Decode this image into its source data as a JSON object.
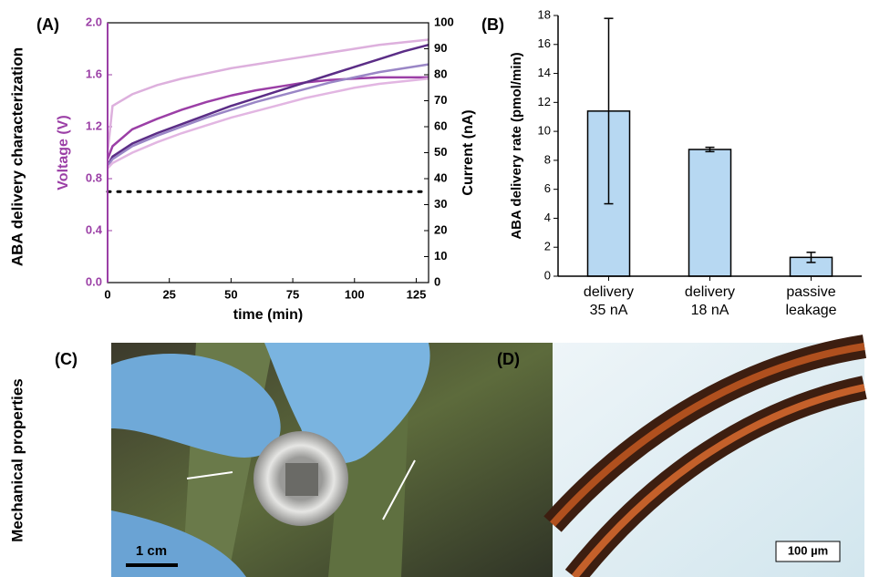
{
  "row_labels": [
    "ABA delivery characterization",
    "Mechanical properties"
  ],
  "photos": [
    {
      "label": "(C)",
      "scale_bar": "1 cm"
    },
    {
      "label": "(D)",
      "scale_bar": "100 µm"
    }
  ],
  "chart_data": [
    {
      "type": "line",
      "panel_label": "(A)",
      "xlabel": "time (min)",
      "ylabel": "Voltage (V)",
      "y2label": "Current (nA)",
      "ylabel_color": "#9b3fa6",
      "x": [
        0,
        2,
        10,
        20,
        30,
        40,
        50,
        60,
        70,
        80,
        90,
        100,
        110,
        120,
        130
      ],
      "xlim": [
        0,
        130
      ],
      "xticks": [
        0,
        25,
        50,
        75,
        100,
        125
      ],
      "ylim": [
        0,
        2
      ],
      "yticks": [
        {
          "value": 0,
          "label": "0.0"
        },
        0.4,
        0.8,
        1.2,
        1.6,
        {
          "value": 2,
          "label": "2.0"
        }
      ],
      "y2lim": [
        0,
        100
      ],
      "y2ticks": [
        0,
        10,
        20,
        30,
        40,
        50,
        60,
        70,
        80,
        90,
        100
      ],
      "series": [
        {
          "color": "#ddb0dd",
          "values": [
            1.0,
            1.36,
            1.45,
            1.52,
            1.57,
            1.61,
            1.65,
            1.68,
            1.71,
            1.74,
            1.77,
            1.8,
            1.83,
            1.85,
            1.87
          ]
        },
        {
          "color": "#9b3fa6",
          "values": [
            0.95,
            1.05,
            1.18,
            1.26,
            1.33,
            1.39,
            1.44,
            1.48,
            1.51,
            1.54,
            1.56,
            1.57,
            1.58,
            1.58,
            1.58
          ]
        },
        {
          "color": "#5b2d86",
          "values": [
            0.9,
            0.97,
            1.07,
            1.15,
            1.22,
            1.29,
            1.36,
            1.42,
            1.48,
            1.54,
            1.6,
            1.66,
            1.72,
            1.78,
            1.83
          ]
        },
        {
          "color": "#9a86c6",
          "values": [
            0.9,
            0.95,
            1.05,
            1.13,
            1.2,
            1.27,
            1.33,
            1.39,
            1.44,
            1.49,
            1.54,
            1.58,
            1.62,
            1.65,
            1.68
          ]
        },
        {
          "color": "#e2b6e2",
          "values": [
            0.88,
            0.92,
            1.0,
            1.08,
            1.15,
            1.21,
            1.27,
            1.32,
            1.37,
            1.42,
            1.46,
            1.5,
            1.53,
            1.55,
            1.57
          ]
        },
        {
          "color": "#000000",
          "axis": "y2",
          "dash": true,
          "values": [
            35,
            35,
            35,
            35,
            35,
            35,
            35,
            35,
            35,
            35,
            35,
            35,
            35,
            35,
            35
          ]
        }
      ]
    },
    {
      "type": "bar",
      "panel_label": "(B)",
      "ylabel": "ABA delivery rate (pmol/min)",
      "categories": [
        "delivery\n35 nA",
        "delivery\n18 nA",
        "passive\nleakage"
      ],
      "values": [
        11.4,
        8.75,
        1.3
      ],
      "errors": [
        6.4,
        0.15,
        0.35
      ],
      "color": "#b7d8f2",
      "ylim": [
        0,
        18
      ],
      "yticks": [
        0,
        2,
        4,
        6,
        8,
        10,
        12,
        14,
        16,
        18
      ]
    }
  ]
}
